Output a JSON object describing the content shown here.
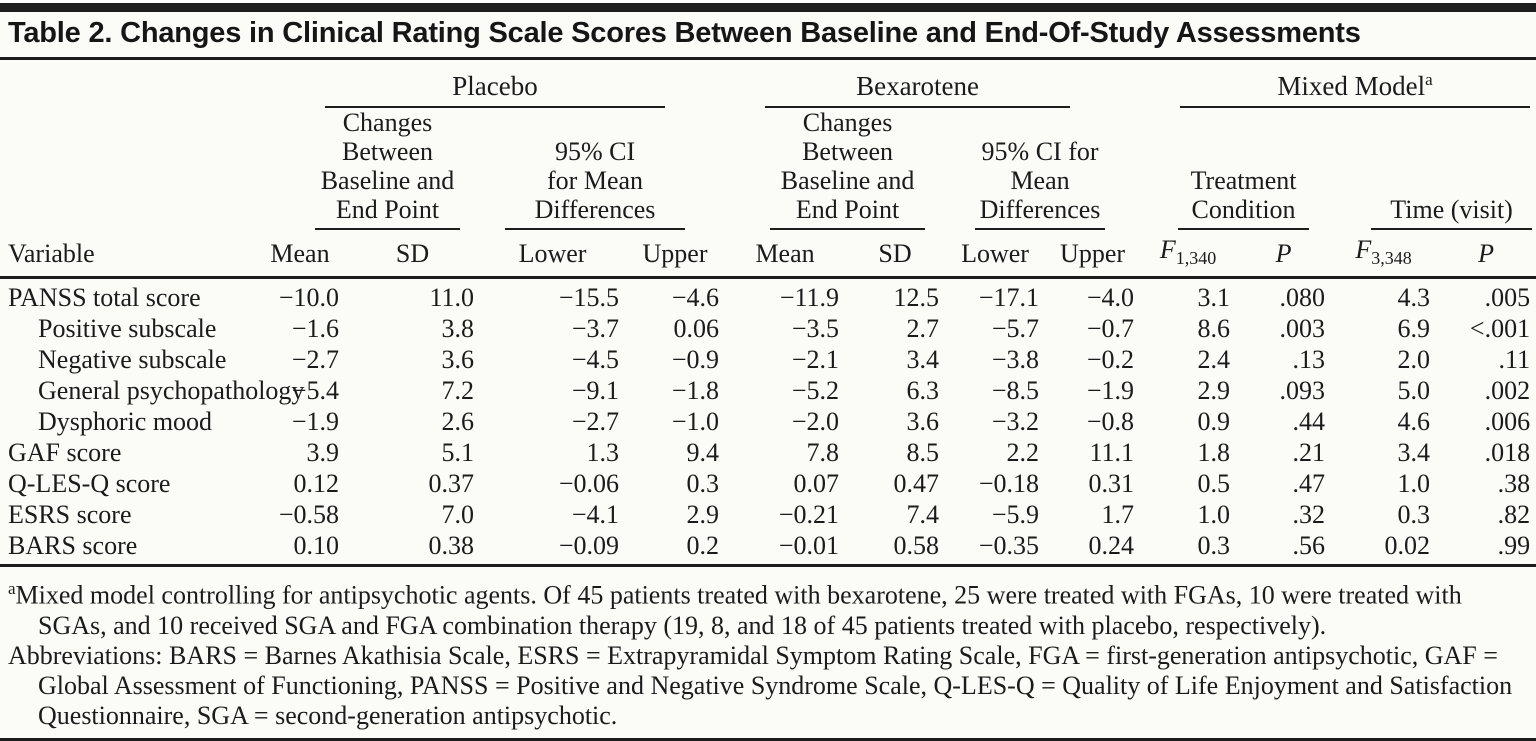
{
  "title": "Table 2. Changes in Clinical Rating Scale Scores Between Baseline and End-Of-Study Assessments",
  "table": {
    "groups": [
      {
        "label": "Placebo"
      },
      {
        "label": "Bexarotene"
      },
      {
        "label": "Mixed Model",
        "sup": "a"
      }
    ],
    "subgroups": [
      "Changes\nBetween\nBaseline and\nEnd Point",
      "95% CI\nfor Mean\nDifferences",
      "Changes\nBetween\nBaseline and\nEnd Point",
      "95% CI for\nMean\nDifferences",
      "Treatment\nCondition",
      "Time (visit)"
    ],
    "variable_header": "Variable",
    "columns": [
      "Mean",
      "SD",
      "Lower",
      "Upper",
      "Mean",
      "SD",
      "Lower",
      "Upper"
    ],
    "f_columns": [
      {
        "base": "F",
        "sub": "1,340"
      },
      {
        "base": "F",
        "sub": "3,348"
      }
    ],
    "p_label": "P",
    "rows": [
      {
        "label": "PANSS total score",
        "indent": false,
        "values": [
          "−10.0",
          "11.0",
          "−15.5",
          "−4.6",
          "−11.9",
          "12.5",
          "−17.1",
          "−4.0",
          "3.1",
          ".080",
          "4.3",
          ".005"
        ]
      },
      {
        "label": "Positive subscale",
        "indent": true,
        "values": [
          "−1.6",
          "3.8",
          "−3.7",
          "0.06",
          "−3.5",
          "2.7",
          "−5.7",
          "−0.7",
          "8.6",
          ".003",
          "6.9",
          "<.001"
        ]
      },
      {
        "label": "Negative subscale",
        "indent": true,
        "values": [
          "−2.7",
          "3.6",
          "−4.5",
          "−0.9",
          "−2.1",
          "3.4",
          "−3.8",
          "−0.2",
          "2.4",
          ".13",
          "2.0",
          ".11"
        ]
      },
      {
        "label": "General psychopathology",
        "indent": true,
        "values": [
          "−5.4",
          "7.2",
          "−9.1",
          "−1.8",
          "−5.2",
          "6.3",
          "−8.5",
          "−1.9",
          "2.9",
          ".093",
          "5.0",
          ".002"
        ]
      },
      {
        "label": "Dysphoric mood",
        "indent": true,
        "values": [
          "−1.9",
          "2.6",
          "−2.7",
          "−1.0",
          "−2.0",
          "3.6",
          "−3.2",
          "−0.8",
          "0.9",
          ".44",
          "4.6",
          ".006"
        ]
      },
      {
        "label": "GAF score",
        "indent": false,
        "values": [
          "3.9",
          "5.1",
          "1.3",
          "9.4",
          "7.8",
          "8.5",
          "2.2",
          "11.1",
          "1.8",
          ".21",
          "3.4",
          ".018"
        ]
      },
      {
        "label": "Q-LES-Q score",
        "indent": false,
        "values": [
          "0.12",
          "0.37",
          "−0.06",
          "0.3",
          "0.07",
          "0.47",
          "−0.18",
          "0.31",
          "0.5",
          ".47",
          "1.0",
          ".38"
        ]
      },
      {
        "label": "ESRS score",
        "indent": false,
        "values": [
          "−0.58",
          "7.0",
          "−4.1",
          "2.9",
          "−0.21",
          "7.4",
          "−5.9",
          "1.7",
          "1.0",
          ".32",
          "0.3",
          ".82"
        ]
      },
      {
        "label": "BARS score",
        "indent": false,
        "values": [
          "0.10",
          "0.38",
          "−0.09",
          "0.2",
          "−0.01",
          "0.58",
          "−0.35",
          "0.24",
          "0.3",
          ".56",
          "0.02",
          ".99"
        ]
      }
    ]
  },
  "footnotes": [
    {
      "sup": "a",
      "text": "Mixed model controlling for antipsychotic agents. Of 45 patients treated with bexarotene, 25 were treated with FGAs, 10 were treated with SGAs, and 10 received SGA and FGA combination therapy (19, 8, and 18 of 45 patients treated with placebo, respectively)."
    },
    {
      "sup": "",
      "text": "Abbreviations: BARS = Barnes Akathisia Scale, ESRS = Extrapyramidal Symptom Rating Scale, FGA = first-generation antipsychotic, GAF = Global Assessment of Functioning, PANSS = Positive and Negative Syndrome Scale, Q-LES-Q = Quality of Life Enjoyment and Satisfaction Questionnaire, SGA = second-generation antipsychotic."
    }
  ],
  "colors": {
    "text": "#1b1b1b",
    "background": "#fbfbf8",
    "rule": "#1d1d1d"
  }
}
